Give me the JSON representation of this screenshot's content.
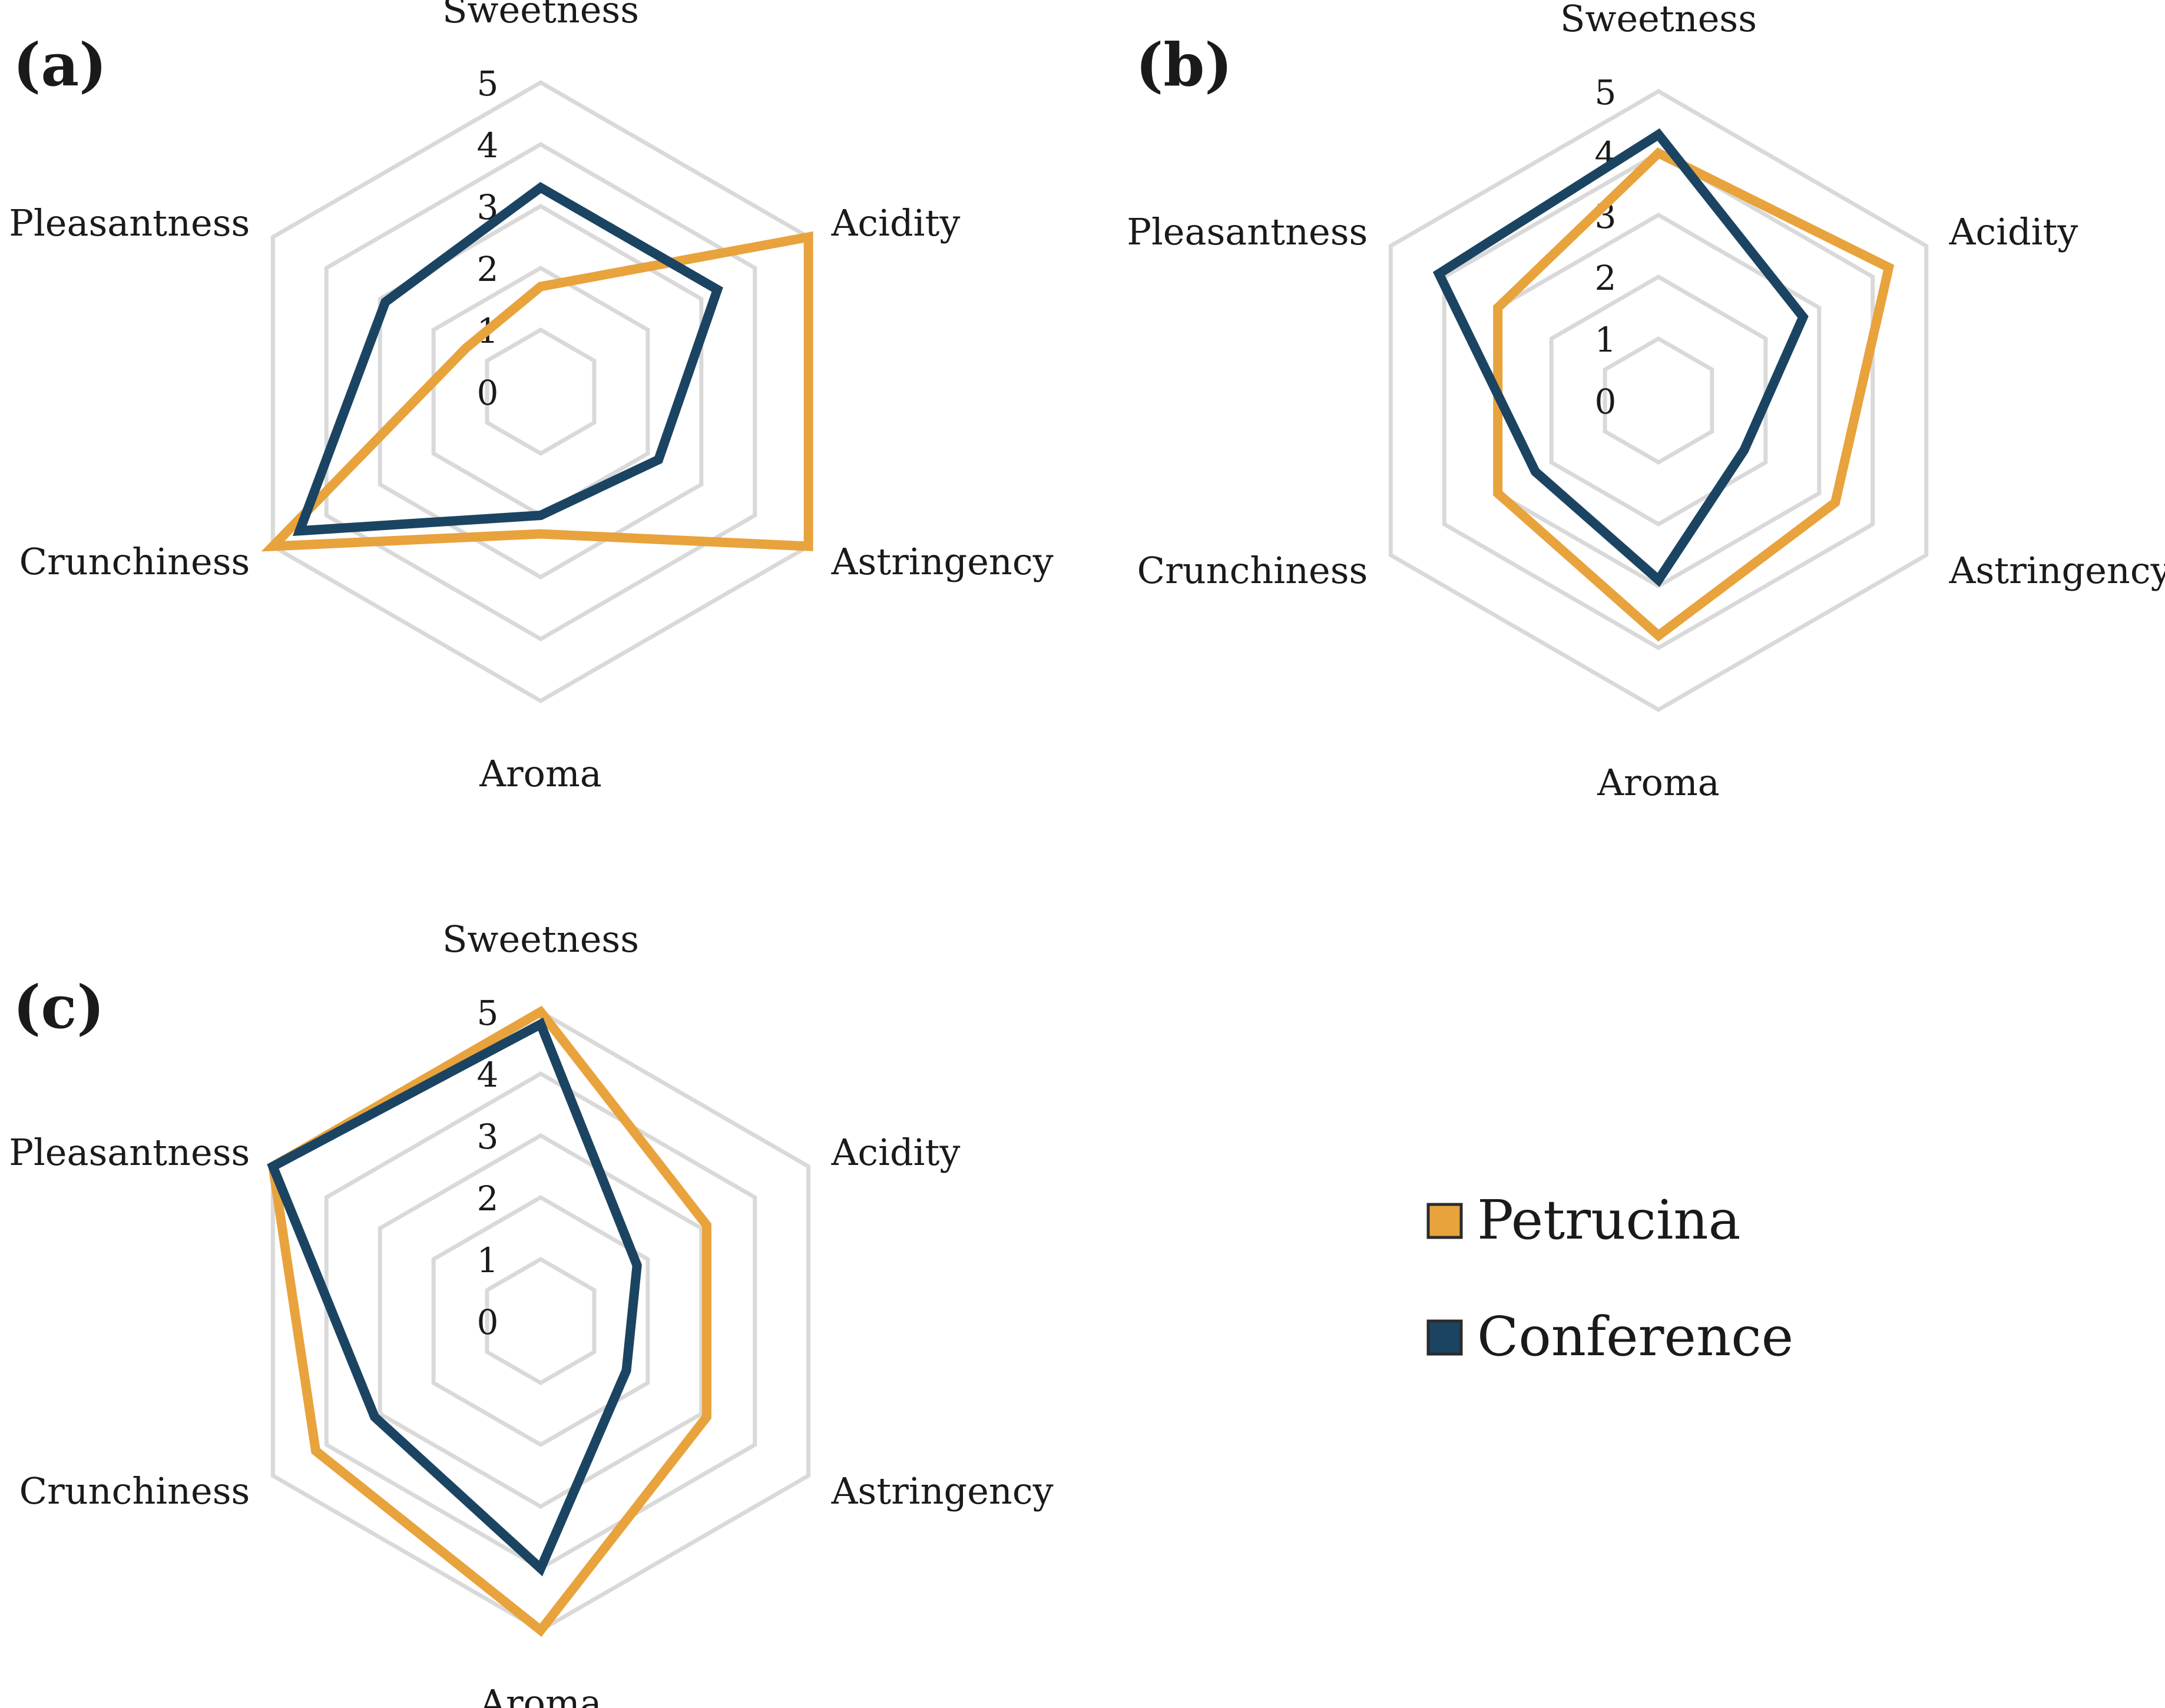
{
  "colors": {
    "petrucina": "#E8A33D",
    "conference": "#1B4462",
    "grid": "#D9D9D9"
  },
  "legend": [
    {
      "name": "Petrucina",
      "color": "#E8A33D"
    },
    {
      "name": "Conference",
      "color": "#1B4462"
    }
  ],
  "chart_data": [
    {
      "type": "radar",
      "panel": "(a)",
      "axes": [
        "Sweetness",
        "Acidity",
        "Astringency",
        "Aroma",
        "Crunchiness",
        "Pleasantness"
      ],
      "ticks": [
        "0",
        "1",
        "2",
        "3",
        "4",
        "5"
      ],
      "range": [
        0,
        5
      ],
      "series": [
        {
          "name": "Petrucina",
          "values": [
            1.7,
            5.0,
            5.0,
            2.3,
            5.0,
            1.4
          ]
        },
        {
          "name": "Conference",
          "values": [
            3.3,
            3.3,
            2.2,
            2.0,
            4.5,
            2.9
          ]
        }
      ]
    },
    {
      "type": "radar",
      "panel": "(b)",
      "axes": [
        "Sweetness",
        "Acidity",
        "Astringency",
        "Aroma",
        "Crunchiness",
        "Pleasantness"
      ],
      "ticks": [
        "0",
        "1",
        "2",
        "3",
        "4",
        "5"
      ],
      "range": [
        0,
        5
      ],
      "series": [
        {
          "name": "Petrucina",
          "values": [
            4.0,
            4.3,
            3.3,
            3.8,
            3.0,
            3.0
          ]
        },
        {
          "name": "Conference",
          "values": [
            4.3,
            2.7,
            1.6,
            2.9,
            2.3,
            4.1
          ]
        }
      ]
    },
    {
      "type": "radar",
      "panel": "(c)",
      "axes": [
        "Sweetness",
        "Acidity",
        "Astringency",
        "Aroma",
        "Crunchiness",
        "Pleasantness"
      ],
      "ticks": [
        "0",
        "1",
        "2",
        "3",
        "4",
        "5"
      ],
      "range": [
        0,
        5
      ],
      "series": [
        {
          "name": "Petrucina",
          "values": [
            5.0,
            3.1,
            3.1,
            5.0,
            4.2,
            5.0
          ]
        },
        {
          "name": "Conference",
          "values": [
            4.8,
            1.8,
            1.6,
            4.0,
            3.1,
            5.0
          ]
        }
      ]
    }
  ]
}
